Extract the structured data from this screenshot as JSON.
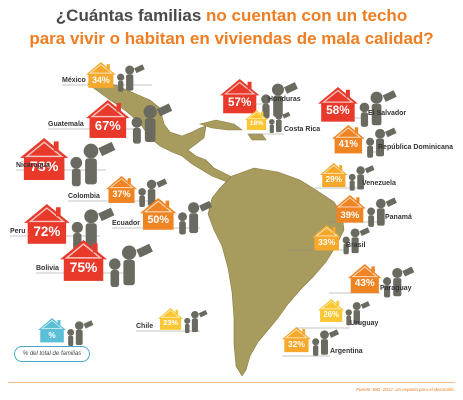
{
  "title": {
    "line1_part1": "¿Cuántas familias",
    "line1_part2": "no cuentan con un techo",
    "line2": "para vivir o habitan en viviendas de mala calidad?"
  },
  "legend": {
    "symbol": "%",
    "label": "% del total de familias"
  },
  "source": "Fuente: BID. 2012. Un espacio para el desarrollo.",
  "colors": {
    "title_dark": "#4a4a4a",
    "title_accent": "#ef7d22",
    "land": "#a89b5e",
    "ocean": "#ffffff",
    "red": "#e8392b",
    "orange": "#ef8423",
    "amber": "#f5a82a",
    "yellow": "#fbc631",
    "teal": "#5bbfd8"
  },
  "chart_data": {
    "type": "bar",
    "categories": [
      "México",
      "Honduras",
      "El Salvador",
      "Guatemala",
      "Costa Rica",
      "República Dominicana",
      "Nicaragua",
      "Venezuela",
      "Colombia",
      "Panamá",
      "Peru",
      "Ecuador",
      "Brasil",
      "Bolivia",
      "Paraguay",
      "Uruguay",
      "Chile",
      "Argentina"
    ],
    "values": [
      34,
      57,
      58,
      67,
      18,
      41,
      78,
      29,
      37,
      39,
      72,
      50,
      33,
      75,
      43,
      26,
      23,
      32
    ],
    "value_labels": [
      "34%",
      "57%",
      "58%",
      "67%",
      "18%",
      "41%",
      "78%",
      "29%",
      "37%",
      "39%",
      "72%",
      "50%",
      "33%",
      "75%",
      "43%",
      "26%",
      "23%",
      "32%"
    ],
    "unit": "% del total de familias"
  }
}
